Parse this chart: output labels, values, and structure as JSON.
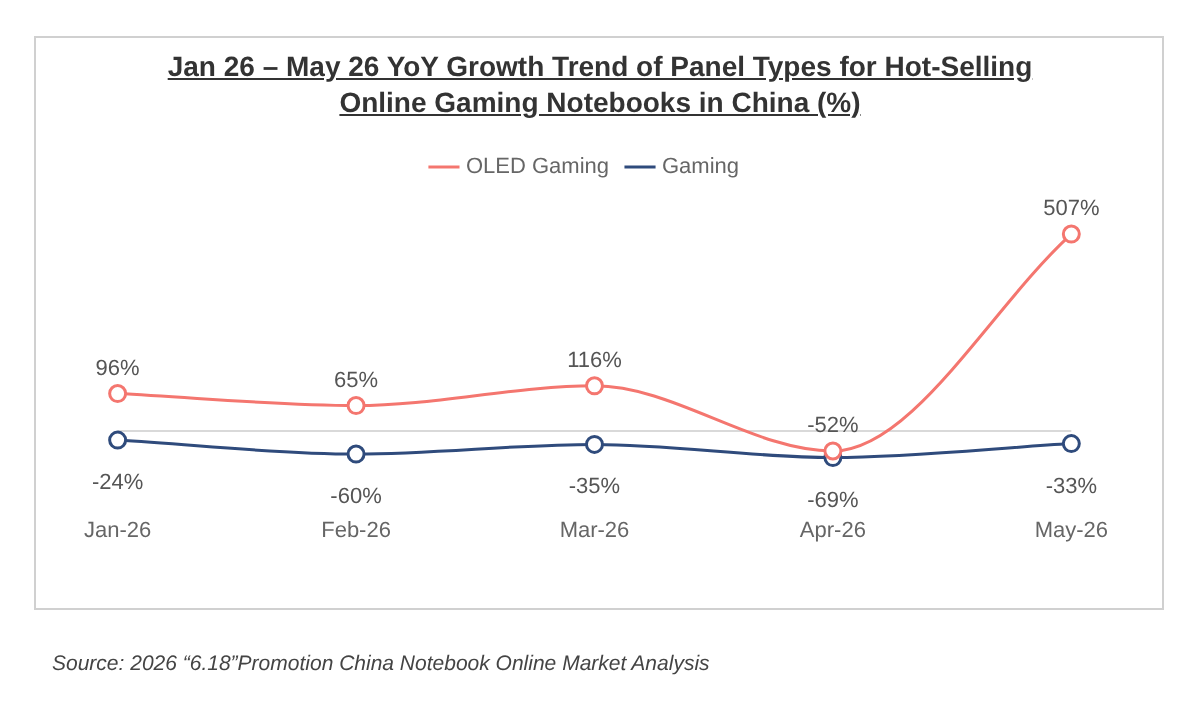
{
  "chart_data": {
    "type": "line",
    "title": "Jan 26 – May 26 YoY Growth Trend of Panel Types for Hot-Selling Online Gaming Notebooks in China (%)",
    "categories": [
      "Jan-26",
      "Feb-26",
      "Mar-26",
      "Apr-26",
      "May-26"
    ],
    "series": [
      {
        "name": "OLED Gaming",
        "color": "#f4766f",
        "values": [
          96,
          65,
          116,
          -52,
          507
        ],
        "value_labels": [
          "96%",
          "65%",
          "116%",
          "-52%",
          "507%"
        ]
      },
      {
        "name": "Gaming",
        "color": "#2f4b7c",
        "values": [
          -24,
          -60,
          -35,
          -69,
          -33
        ],
        "value_labels": [
          "-24%",
          "-60%",
          "-35%",
          "-69%",
          "-33%"
        ]
      }
    ],
    "legend": "top",
    "grid": false,
    "marker": "circle",
    "line_style": "solid",
    "annotations": [
      "Source: 2026 “6.18”Promotion China Notebook Online Market Analysis"
    ]
  }
}
